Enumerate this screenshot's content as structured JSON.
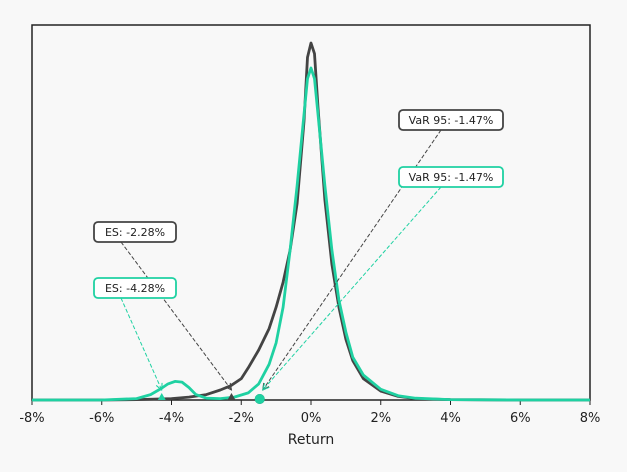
{
  "chart_data": {
    "type": "area",
    "title": "",
    "xlabel": "Return",
    "ylabel": "",
    "xlim": [
      -8,
      8
    ],
    "x_unit": "%",
    "xticks": [
      -8,
      -6,
      -4,
      -2,
      0,
      2,
      4,
      6,
      8
    ],
    "xtick_labels": [
      "-8%",
      "-6%",
      "-4%",
      "-2%",
      "0%",
      "2%",
      "4%",
      "6%",
      "8%"
    ],
    "grid": false,
    "legend": "none",
    "series": [
      {
        "color": "#444444",
        "x": [
          -8,
          -6,
          -5,
          -4,
          -3.5,
          -3,
          -2.6,
          -2.3,
          -2,
          -1.8,
          -1.5,
          -1.2,
          -1,
          -0.8,
          -0.6,
          -0.4,
          -0.2,
          -0.1,
          0,
          0.1,
          0.2,
          0.4,
          0.6,
          0.8,
          1,
          1.2,
          1.5,
          2,
          2.5,
          3,
          4,
          6,
          8
        ],
        "y": [
          0,
          0,
          0.001,
          0.004,
          0.008,
          0.015,
          0.028,
          0.04,
          0.06,
          0.09,
          0.14,
          0.2,
          0.26,
          0.33,
          0.42,
          0.55,
          0.78,
          0.96,
          1.0,
          0.97,
          0.82,
          0.56,
          0.38,
          0.26,
          0.17,
          0.11,
          0.06,
          0.025,
          0.01,
          0.004,
          0.001,
          0,
          0
        ]
      },
      {
        "color": "#1fd1a2",
        "x": [
          -8,
          -6,
          -5,
          -4.6,
          -4.3,
          -4.1,
          -3.9,
          -3.7,
          -3.5,
          -3.3,
          -3,
          -2.6,
          -2.2,
          -1.8,
          -1.5,
          -1.2,
          -1,
          -0.8,
          -0.6,
          -0.4,
          -0.2,
          -0.1,
          0,
          0.1,
          0.2,
          0.4,
          0.6,
          0.8,
          1,
          1.2,
          1.5,
          2,
          2.5,
          3,
          4,
          6,
          8
        ],
        "y": [
          0,
          0,
          0.004,
          0.015,
          0.032,
          0.045,
          0.052,
          0.05,
          0.035,
          0.015,
          0.005,
          0.004,
          0.008,
          0.02,
          0.045,
          0.1,
          0.16,
          0.26,
          0.42,
          0.6,
          0.8,
          0.9,
          0.93,
          0.9,
          0.8,
          0.6,
          0.42,
          0.28,
          0.19,
          0.12,
          0.07,
          0.03,
          0.012,
          0.005,
          0.001,
          0,
          0
        ]
      }
    ],
    "annotations": [
      {
        "text": "VaR 95: -1.47%",
        "x": -1.47,
        "color": "#444444"
      },
      {
        "text": "VaR 95: -1.47%",
        "x": -1.47,
        "color": "#1fd1a2"
      },
      {
        "text": "ES: -2.28%",
        "x": -2.28,
        "color": "#444444"
      },
      {
        "text": "ES: -4.28%",
        "x": -4.28,
        "color": "#1fd1a2"
      }
    ]
  }
}
